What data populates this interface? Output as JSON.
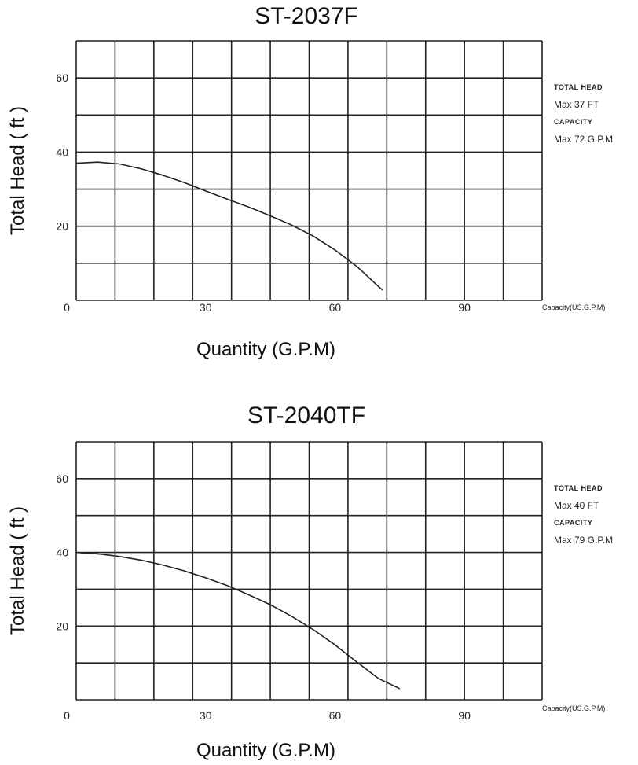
{
  "charts": [
    {
      "title": "ST-2037F",
      "ylabel": "Total Head ( ft )",
      "xlabel": "Quantity (G.P.M)",
      "capacity_axis_label": "Capacity(US.G.P.M)",
      "side": {
        "head_heading": "TOTAL HEAD",
        "head_value": "Max 37 FT",
        "capacity_heading": "CAPACITY",
        "capacity_value": "Max 72 G.P.M"
      }
    },
    {
      "title": "ST-2040TF",
      "ylabel": "Total Head ( ft )",
      "xlabel": "Quantity (G.P.M)",
      "capacity_axis_label": "Capacity(US.G.P.M)",
      "side": {
        "head_heading": "TOTAL HEAD",
        "head_value": "Max 40 FT",
        "capacity_heading": "CAPACITY",
        "capacity_value": "Max 79 G.P.M"
      }
    }
  ],
  "chart_data": [
    {
      "type": "line",
      "title": "ST-2037F",
      "xlabel": "Quantity (G.P.M)",
      "ylabel": "Total Head ( ft )",
      "xlim": [
        0,
        108
      ],
      "ylim": [
        0,
        70
      ],
      "xticks": [
        0,
        30,
        60,
        90
      ],
      "yticks": [
        20,
        40,
        60
      ],
      "grid": true,
      "line_color": "#222222",
      "x": [
        0,
        5,
        10,
        15,
        20,
        25,
        30,
        35,
        40,
        45,
        50,
        55,
        60,
        65,
        70,
        71
      ],
      "y": [
        37,
        37.3,
        36.8,
        35.5,
        33.8,
        31.8,
        29.5,
        27.3,
        25.2,
        22.8,
        20.3,
        17.3,
        13.6,
        9.2,
        3.8,
        2.8
      ]
    },
    {
      "type": "line",
      "title": "ST-2040TF",
      "xlabel": "Quantity (G.P.M)",
      "ylabel": "Total Head ( ft )",
      "xlim": [
        0,
        108
      ],
      "ylim": [
        0,
        70
      ],
      "xticks": [
        0,
        30,
        60,
        90
      ],
      "yticks": [
        20,
        40,
        60
      ],
      "grid": true,
      "line_color": "#222222",
      "x": [
        0,
        5,
        10,
        15,
        20,
        25,
        30,
        35,
        40,
        45,
        50,
        55,
        60,
        65,
        70,
        75
      ],
      "y": [
        40,
        39.6,
        38.9,
        37.9,
        36.6,
        35.0,
        33.1,
        31.0,
        28.5,
        25.8,
        22.6,
        19.0,
        14.9,
        10.3,
        5.8,
        3.0
      ]
    }
  ]
}
